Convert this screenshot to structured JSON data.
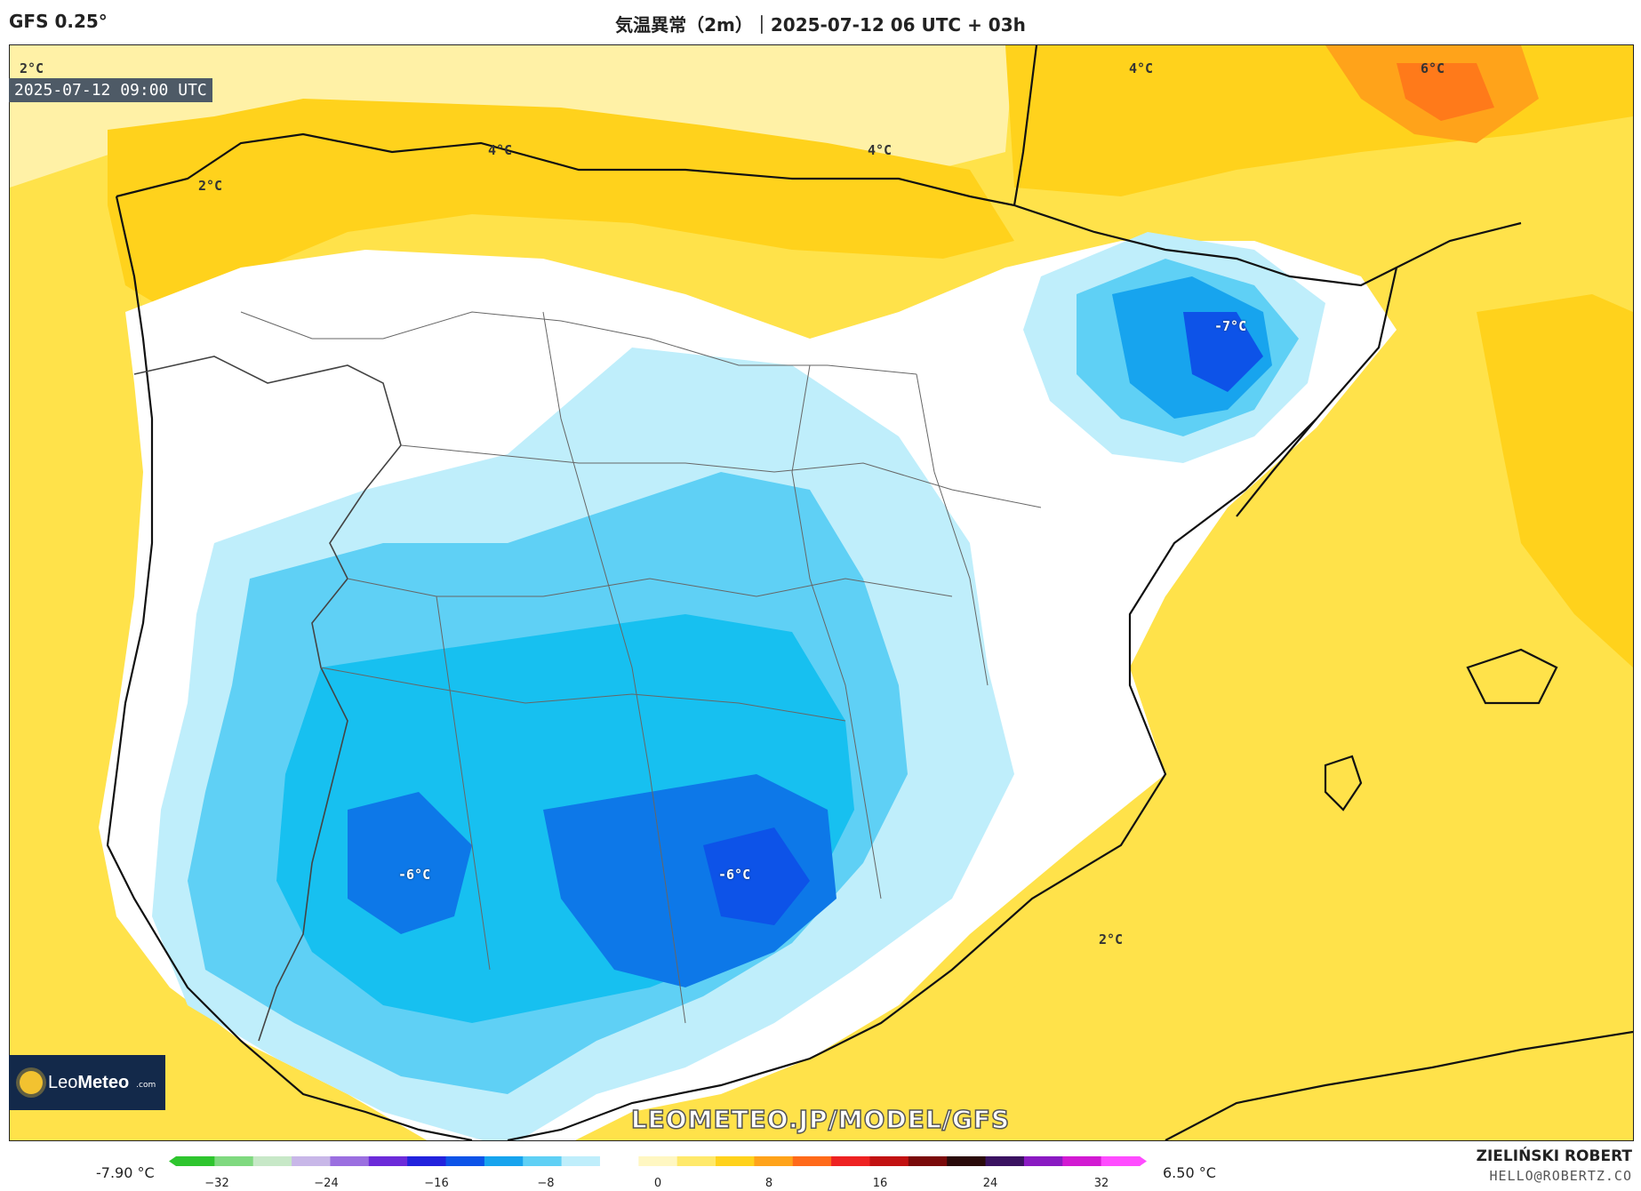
{
  "header": {
    "model": "GFS 0.25°",
    "title": "気温異常（2m）｜2025-07-12 06 UTC + 03h"
  },
  "map": {
    "timestamp": "2025-07-12 09:00 UTC",
    "watermark": "LEOMETEO.JP/MODEL/GFS",
    "contour_labels": [
      {
        "text": "2°C",
        "kind": "warm"
      },
      {
        "text": "2°C",
        "kind": "warm"
      },
      {
        "text": "4°C",
        "kind": "warm"
      },
      {
        "text": "4°C",
        "kind": "warm"
      },
      {
        "text": "4°C",
        "kind": "warm"
      },
      {
        "text": "6°C",
        "kind": "warm"
      },
      {
        "text": "-7°C",
        "kind": "cold"
      },
      {
        "text": "-6°C",
        "kind": "cold"
      },
      {
        "text": "-6°C",
        "kind": "cold"
      },
      {
        "text": "2°C",
        "kind": "warm"
      }
    ]
  },
  "logo": {
    "brand_a": "Leo",
    "brand_b": "Meteo",
    "suffix": ".com"
  },
  "legend": {
    "min_label": "-7.90 °C",
    "max_label": "6.50 °C",
    "ticks": [
      "−32",
      "−24",
      "−16",
      "−8",
      "0",
      "8",
      "16",
      "24",
      "32"
    ],
    "colors": [
      "#2ec52e",
      "#7fd97f",
      "#c7e8c7",
      "#c8b7e8",
      "#9b6fe0",
      "#6c2bd9",
      "#2222dd",
      "#0d53e8",
      "#17a4ee",
      "#5fd0f5",
      "#bfeefb",
      "#ffffff",
      "#fff7c2",
      "#ffe96b",
      "#ffd21c",
      "#ffa31a",
      "#ff6a1a",
      "#ee2222",
      "#c21111",
      "#7a0a0a",
      "#2a0a0a",
      "#3a1260",
      "#8a1ac2",
      "#d21ad2",
      "#ff4cff"
    ]
  },
  "credits": {
    "author": "ZIELIŃSKI ROBERT",
    "email": "HELLO@ROBERTZ.CO"
  }
}
